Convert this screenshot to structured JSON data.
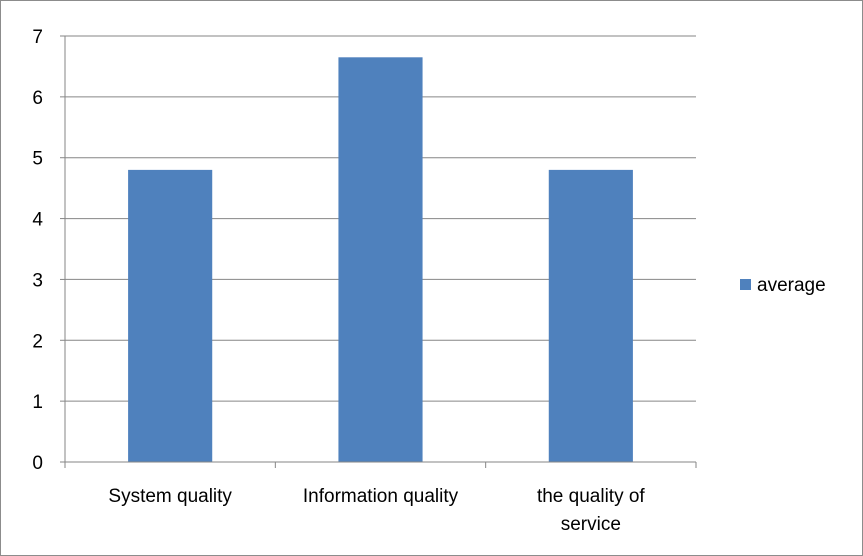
{
  "chart_data": {
    "type": "bar",
    "categories": [
      "System quality",
      "Information quality",
      "the quality of service"
    ],
    "category_label_lines": [
      [
        "System quality"
      ],
      [
        "Information quality"
      ],
      [
        "the quality of",
        "service"
      ]
    ],
    "series": [
      {
        "name": "average",
        "values": [
          4.8,
          6.65,
          4.8
        ],
        "color": "#4F81BD"
      }
    ],
    "ylim": [
      0,
      7
    ],
    "yticks": [
      "0",
      "1",
      "2",
      "3",
      "4",
      "5",
      "6",
      "7"
    ],
    "grid": true,
    "gridline_color": "#868686",
    "legend": {
      "position": "right"
    }
  }
}
